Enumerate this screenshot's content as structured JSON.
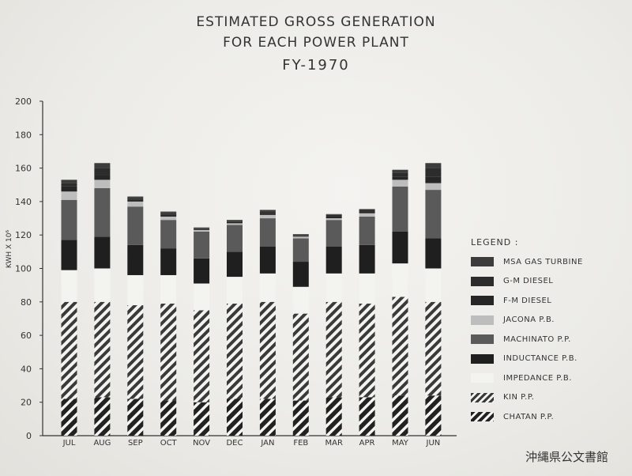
{
  "title_lines": [
    "ESTIMATED GROSS GENERATION",
    "FOR EACH POWER PLANT",
    "FY-1970"
  ],
  "archive_mark": "沖縄県公文書館",
  "legend_title": "LEGEND :",
  "colors": {
    "msa_gas_turbine": "#3c3c3c",
    "gm_diesel": "#2c2c2c",
    "fm_diesel": "#262626",
    "jacona": "#bdbdbd",
    "machinato": "#5a5a5a",
    "inductance": "#1f1f1f",
    "impedance": "#f3f3f0",
    "kin_stripe": "#3a3a3a",
    "chatan_stripe": "#222222"
  },
  "chart_data": {
    "type": "bar",
    "stacked": true,
    "title": "ESTIMATED GROSS GENERATION FOR EACH POWER PLANT FY-1970",
    "ylabel": "KWH X 10⁶",
    "xlabel": "",
    "ylim": [
      0,
      200
    ],
    "yticks": [
      0,
      20,
      40,
      60,
      80,
      100,
      120,
      140,
      160,
      180,
      200
    ],
    "grid": false,
    "legend_position": "right",
    "categories": [
      "JUL",
      "AUG",
      "SEP",
      "OCT",
      "NOV",
      "DEC",
      "JAN",
      "FEB",
      "MAR",
      "APR",
      "MAY",
      "JUN"
    ],
    "series": [
      {
        "name": "CHATAN P.P.",
        "key": "chatan",
        "values": [
          22,
          23,
          22,
          21,
          20,
          22,
          22,
          21,
          23,
          23,
          24,
          24
        ]
      },
      {
        "name": "KIN P.P.",
        "key": "kin",
        "values": [
          58,
          57,
          56,
          58,
          55,
          57,
          58,
          52,
          57,
          56,
          59,
          56
        ]
      },
      {
        "name": "IMPEDANCE P.B.",
        "key": "impedance",
        "values": [
          19,
          20,
          18,
          17,
          16,
          16,
          17,
          16,
          17,
          18,
          20,
          20
        ]
      },
      {
        "name": "INDUCTANCE P.B.",
        "key": "inductance",
        "values": [
          18,
          19,
          18,
          16,
          15,
          15,
          16,
          15,
          16,
          17,
          19,
          18
        ]
      },
      {
        "name": "MACHINATO P.P.",
        "key": "machinato",
        "values": [
          24,
          29,
          23,
          17,
          16,
          16,
          17,
          14,
          16,
          17,
          27,
          29
        ]
      },
      {
        "name": "JACONA P.B.",
        "key": "jacona",
        "values": [
          5,
          5,
          3,
          2,
          1,
          1,
          2,
          1,
          1,
          2,
          4,
          4
        ]
      },
      {
        "name": "F-M DIESEL",
        "key": "fm_diesel",
        "values": [
          3,
          3,
          1,
          1,
          0.5,
          1,
          1,
          0.5,
          1,
          1,
          2,
          4
        ]
      },
      {
        "name": "G-M DIESEL",
        "key": "gm_diesel",
        "values": [
          2,
          4,
          1,
          1,
          0.5,
          0.5,
          1,
          0.5,
          1,
          1,
          2,
          5
        ]
      },
      {
        "name": "MSA GAS TURBINE",
        "key": "msa_gas_turbine",
        "values": [
          2,
          3,
          1,
          1,
          0.5,
          0.5,
          1,
          0.5,
          0.5,
          0.5,
          2,
          3
        ]
      }
    ]
  }
}
